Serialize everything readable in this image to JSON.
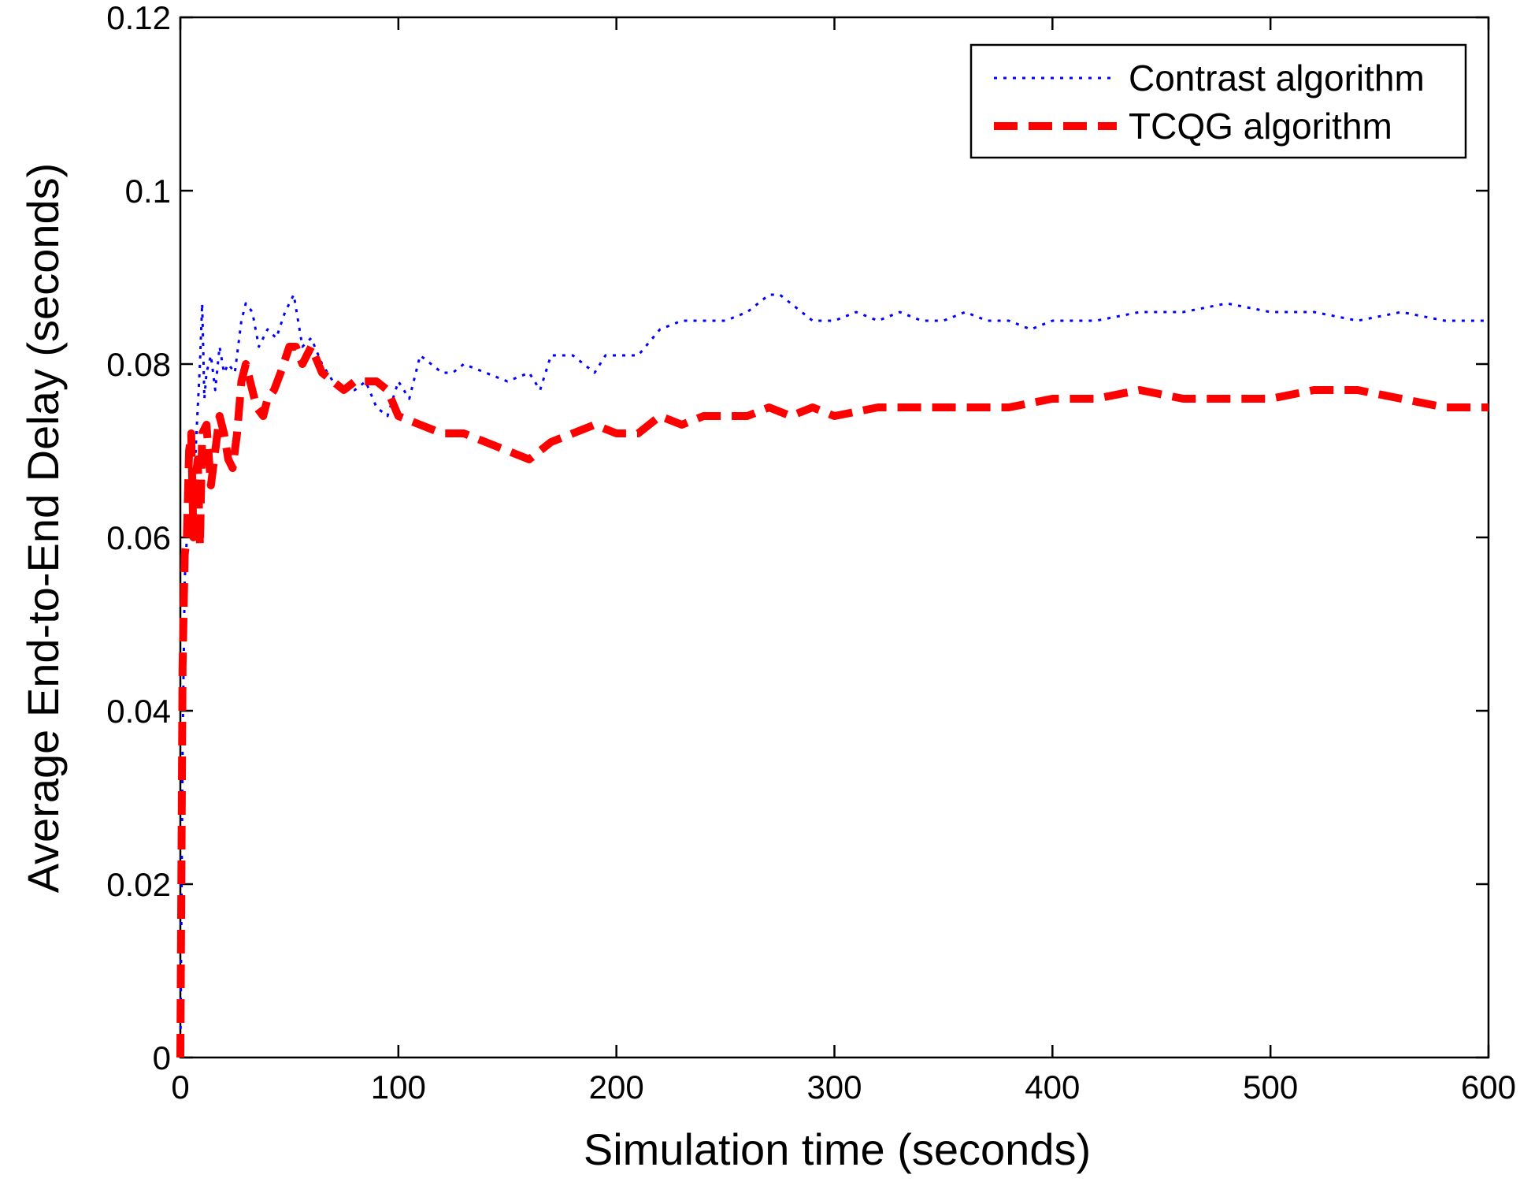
{
  "chart_data": {
    "type": "line",
    "title": "",
    "xlabel": "Simulation time (seconds)",
    "ylabel": "Average End-to-End Delay (seconds)",
    "xlim": [
      0,
      600
    ],
    "ylim": [
      0,
      0.12
    ],
    "xticks": [
      0,
      100,
      200,
      300,
      400,
      500,
      600
    ],
    "xtick_labels": [
      "0",
      "100",
      "200",
      "300",
      "400",
      "500",
      "600"
    ],
    "yticks": [
      0,
      0.02,
      0.04,
      0.06,
      0.08,
      0.1,
      0.12
    ],
    "ytick_labels": [
      "0",
      "0.02",
      "0.04",
      "0.06",
      "0.08",
      "0.1",
      "0.12"
    ],
    "grid": false,
    "legend_position": "top-right",
    "series": [
      {
        "name": "Contrast algorithm",
        "color": "#0000ff",
        "style": "dotted",
        "x": [
          0,
          1,
          2,
          3,
          4,
          5,
          6,
          7,
          8,
          9,
          10,
          11,
          12,
          14,
          16,
          18,
          20,
          22,
          25,
          28,
          30,
          33,
          36,
          40,
          44,
          48,
          52,
          56,
          60,
          65,
          70,
          75,
          80,
          85,
          90,
          95,
          100,
          105,
          110,
          115,
          120,
          125,
          130,
          140,
          150,
          160,
          165,
          170,
          180,
          190,
          195,
          200,
          210,
          220,
          230,
          240,
          250,
          260,
          270,
          275,
          280,
          290,
          300,
          310,
          320,
          330,
          340,
          350,
          360,
          370,
          380,
          390,
          400,
          420,
          440,
          460,
          480,
          500,
          520,
          540,
          560,
          580,
          600
        ],
        "y": [
          0.0,
          0.035,
          0.055,
          0.06,
          0.062,
          0.064,
          0.065,
          0.07,
          0.075,
          0.08,
          0.087,
          0.076,
          0.079,
          0.081,
          0.077,
          0.082,
          0.079,
          0.08,
          0.079,
          0.085,
          0.087,
          0.086,
          0.082,
          0.084,
          0.083,
          0.086,
          0.088,
          0.082,
          0.083,
          0.08,
          0.078,
          0.077,
          0.077,
          0.078,
          0.075,
          0.074,
          0.078,
          0.076,
          0.081,
          0.08,
          0.079,
          0.079,
          0.08,
          0.079,
          0.078,
          0.079,
          0.077,
          0.081,
          0.081,
          0.079,
          0.081,
          0.081,
          0.081,
          0.084,
          0.085,
          0.085,
          0.085,
          0.086,
          0.088,
          0.088,
          0.087,
          0.085,
          0.085,
          0.086,
          0.085,
          0.086,
          0.085,
          0.085,
          0.086,
          0.085,
          0.085,
          0.084,
          0.085,
          0.085,
          0.086,
          0.086,
          0.087,
          0.086,
          0.086,
          0.085,
          0.086,
          0.085,
          0.085
        ]
      },
      {
        "name": "TCQG algorithm",
        "color": "#ff0000",
        "style": "dashed",
        "x": [
          0,
          1,
          2,
          3,
          4,
          5,
          6,
          7,
          8,
          9,
          10,
          12,
          14,
          16,
          18,
          20,
          22,
          24,
          26,
          28,
          30,
          32,
          35,
          38,
          40,
          43,
          46,
          50,
          53,
          56,
          60,
          65,
          70,
          75,
          80,
          85,
          90,
          95,
          100,
          110,
          120,
          130,
          140,
          150,
          160,
          170,
          180,
          190,
          200,
          210,
          220,
          230,
          240,
          250,
          260,
          270,
          280,
          290,
          300,
          320,
          340,
          360,
          380,
          400,
          420,
          440,
          460,
          480,
          500,
          520,
          540,
          560,
          580,
          600
        ],
        "y": [
          0.0,
          0.045,
          0.058,
          0.06,
          0.07,
          0.072,
          0.06,
          0.067,
          0.069,
          0.059,
          0.072,
          0.073,
          0.066,
          0.07,
          0.074,
          0.072,
          0.069,
          0.068,
          0.072,
          0.078,
          0.08,
          0.078,
          0.075,
          0.074,
          0.076,
          0.077,
          0.079,
          0.082,
          0.082,
          0.08,
          0.082,
          0.079,
          0.078,
          0.077,
          0.078,
          0.078,
          0.078,
          0.077,
          0.074,
          0.073,
          0.072,
          0.072,
          0.071,
          0.07,
          0.069,
          0.071,
          0.072,
          0.073,
          0.072,
          0.072,
          0.074,
          0.073,
          0.074,
          0.074,
          0.074,
          0.075,
          0.074,
          0.075,
          0.074,
          0.075,
          0.075,
          0.075,
          0.075,
          0.076,
          0.076,
          0.077,
          0.076,
          0.076,
          0.076,
          0.077,
          0.077,
          0.076,
          0.075,
          0.075
        ]
      }
    ]
  }
}
